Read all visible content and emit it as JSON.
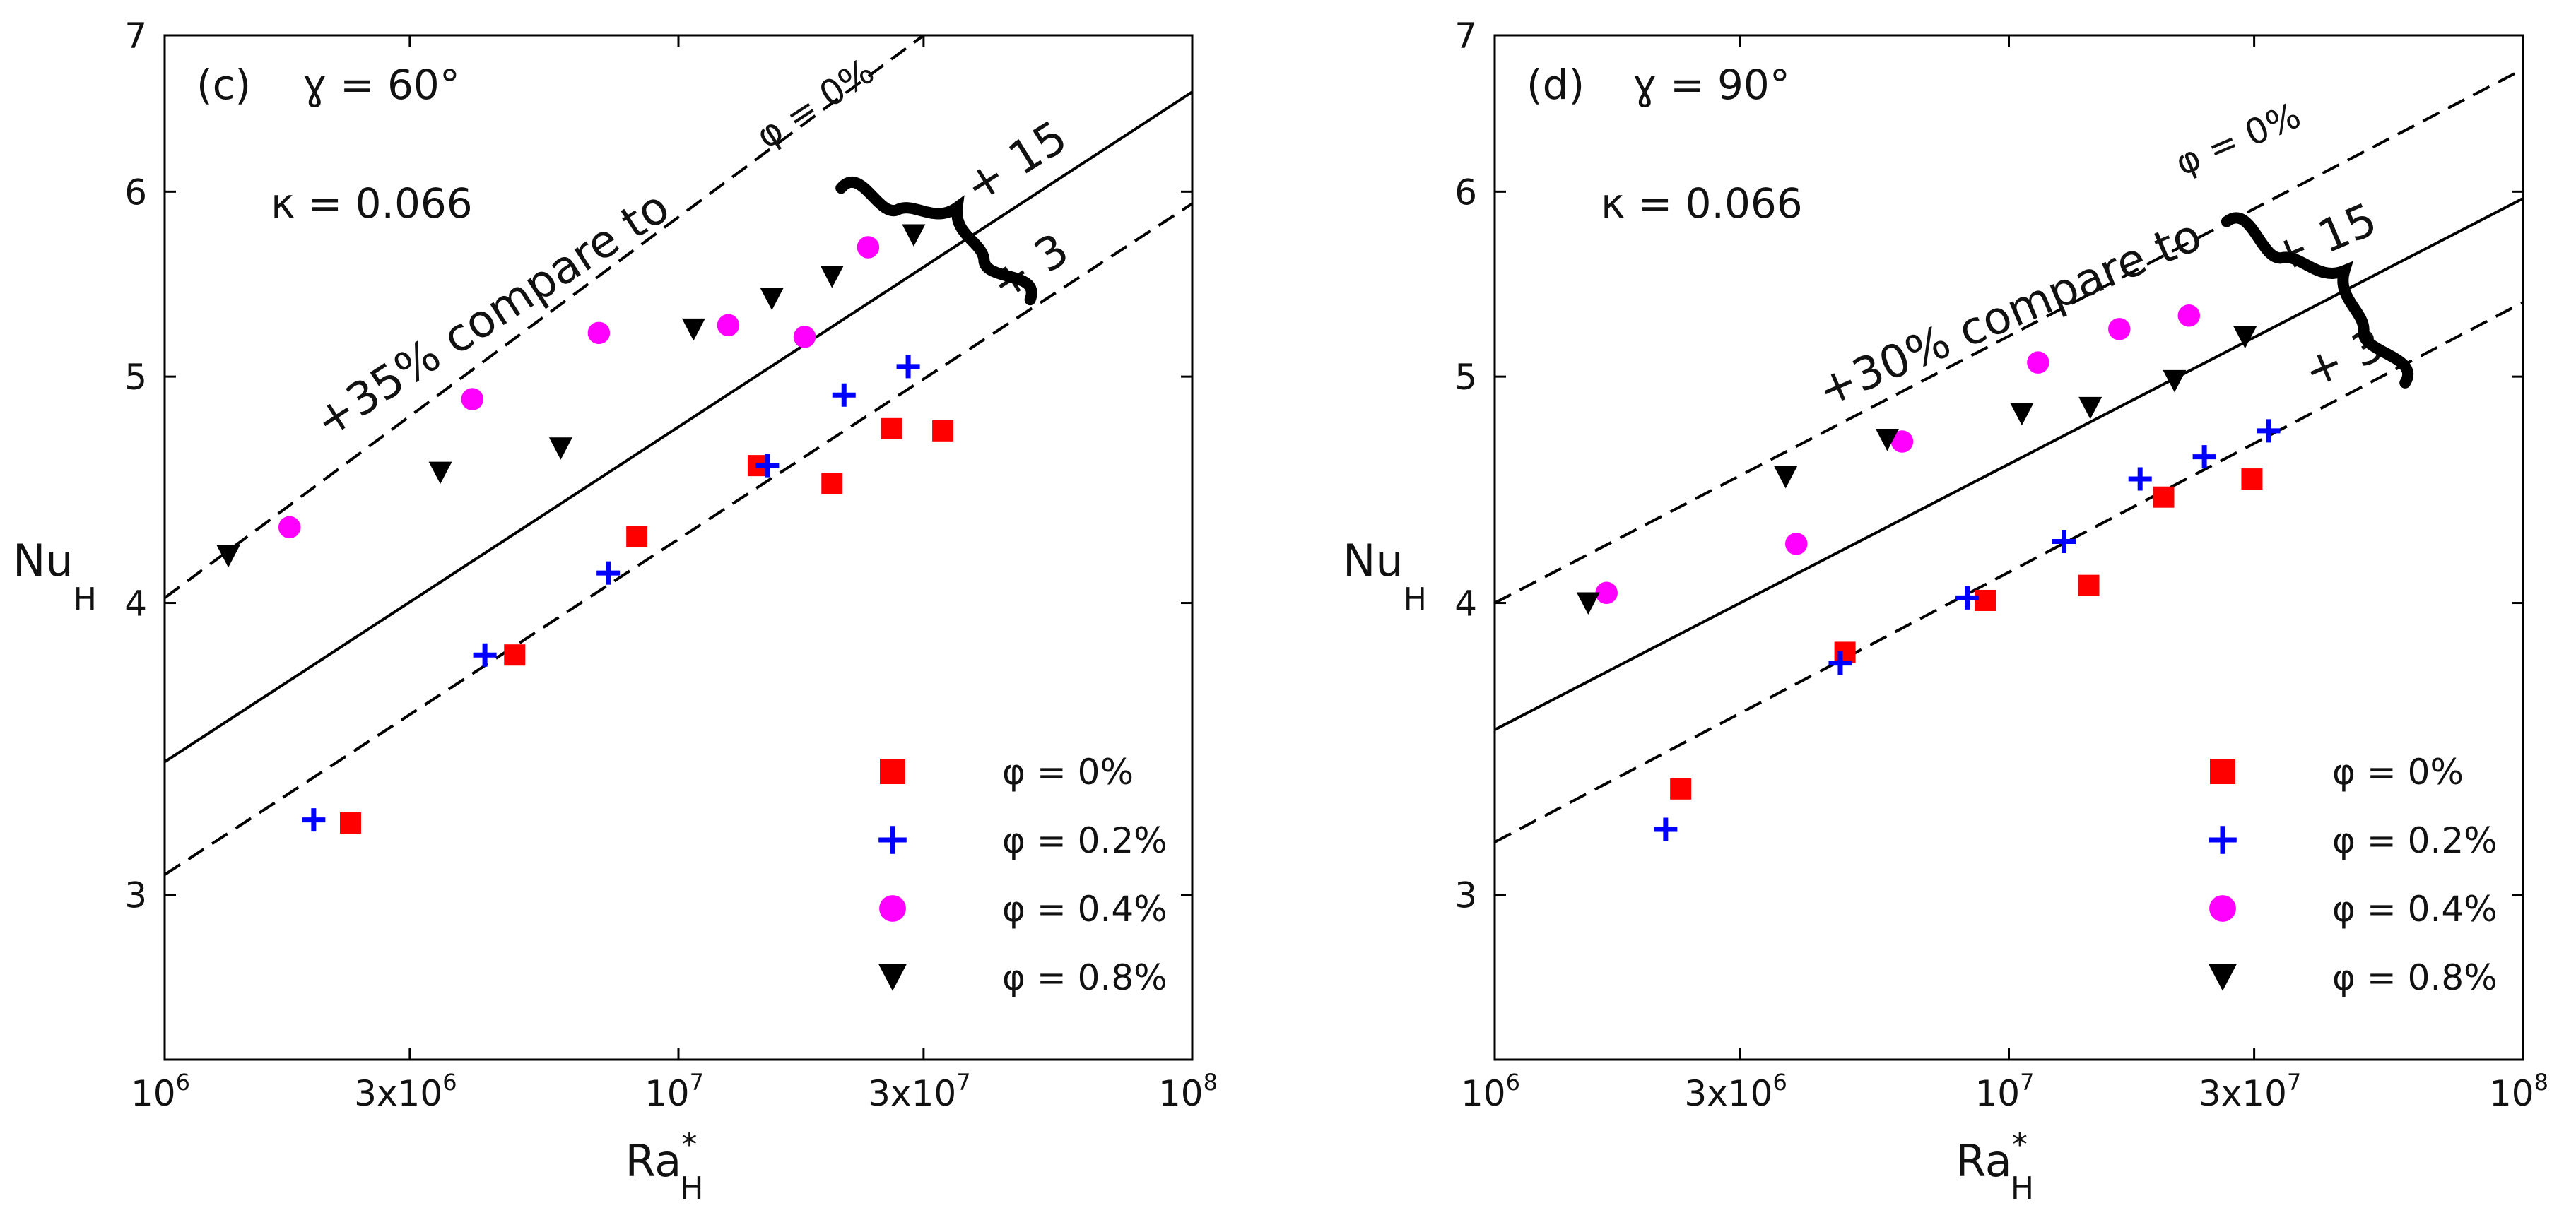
{
  "chart_data": [
    {
      "type": "scatter",
      "scale": {
        "x": "log",
        "y": "log"
      },
      "panel_label": "(c)",
      "angle_symbol": "ɣ",
      "angle_text": " = 60°",
      "kappa_text": "κ = 0.066",
      "xlim": [
        1000000,
        100000000
      ],
      "ylim": [
        2.55,
        7
      ],
      "xticks": [
        {
          "value": 1000000,
          "base": "10",
          "exp": "6"
        },
        {
          "value": 3000000,
          "base": "3x10",
          "exp": "6"
        },
        {
          "value": 10000000,
          "base": "10",
          "exp": "7"
        },
        {
          "value": 30000000,
          "base": "3x10",
          "exp": "7"
        },
        {
          "value": 100000000,
          "base": "10",
          "exp": "8"
        }
      ],
      "yticks": [
        {
          "value": 3,
          "label": "3"
        },
        {
          "value": 4,
          "label": "4"
        },
        {
          "value": 5,
          "label": "5"
        },
        {
          "value": 6,
          "label": "6"
        },
        {
          "value": 7,
          "label": "7"
        }
      ],
      "xlabel": {
        "main": "Ra",
        "sup": "*",
        "sub": "H"
      },
      "ylabel": {
        "main": "Nu",
        "sub": "H"
      },
      "fit_lines": [
        {
          "name": "solid",
          "style": "solid",
          "points": [
            [
              1000000,
              3.42
            ],
            [
              100000000,
              6.62
            ]
          ]
        },
        {
          "name": "upper",
          "style": "dashed",
          "points": [
            [
              1000000,
              4.02
            ],
            [
              30000000,
              7.0
            ]
          ]
        },
        {
          "name": "lower",
          "style": "dashed",
          "points": [
            [
              1000000,
              3.06
            ],
            [
              100000000,
              5.93
            ]
          ]
        }
      ],
      "annotation": {
        "text": "+35% compare to",
        "phi_text": "φ = 0%",
        "at": [
          4500000,
          5.25
        ],
        "phi_at": [
          19000000,
          6.48
        ],
        "angle": -33
      },
      "bands": [
        {
          "label": "+ 15",
          "at": [
            47000000,
            6.1
          ],
          "angle": -32
        },
        {
          "label": "+ 3",
          "at": [
            50000000,
            5.5
          ],
          "angle": -32
        }
      ],
      "brace": {
        "top": [
          21000000,
          6.05
        ],
        "bottom": [
          49000000,
          5.42
        ]
      },
      "series": [
        {
          "name": "φ = 0%",
          "marker": "square",
          "color": "#ff0000",
          "points": [
            [
              2300000,
              3.22
            ],
            [
              4800000,
              3.8
            ],
            [
              8300000,
              4.27
            ],
            [
              14300000,
              4.58
            ],
            [
              19900000,
              4.5
            ],
            [
              26000000,
              4.75
            ],
            [
              32700000,
              4.74
            ]
          ]
        },
        {
          "name": "φ = 0.2%",
          "marker": "plus",
          "color": "#0000ff",
          "points": [
            [
              1950000,
              3.23
            ],
            [
              4200000,
              3.8
            ],
            [
              7300000,
              4.12
            ],
            [
              14900000,
              4.58
            ],
            [
              21000000,
              4.91
            ],
            [
              28000000,
              5.05
            ]
          ]
        },
        {
          "name": "φ = 0.4%",
          "marker": "circle",
          "color": "#ff00ff",
          "points": [
            [
              1750000,
              4.31
            ],
            [
              3970000,
              4.89
            ],
            [
              7000000,
              5.22
            ],
            [
              12500000,
              5.26
            ],
            [
              17600000,
              5.2
            ],
            [
              23400000,
              5.68
            ]
          ]
        },
        {
          "name": "φ = 0.8%",
          "marker": "triangle-down",
          "color": "#000000",
          "points": [
            [
              1330000,
              4.19
            ],
            [
              3440000,
              4.55
            ],
            [
              5900000,
              4.66
            ],
            [
              10700000,
              5.24
            ],
            [
              15200000,
              5.4
            ],
            [
              19900000,
              5.52
            ],
            [
              28700000,
              5.75
            ]
          ]
        }
      ],
      "legend_position": "bottom-right"
    },
    {
      "type": "scatter",
      "scale": {
        "x": "log",
        "y": "log"
      },
      "panel_label": "(d)",
      "angle_symbol": "ɣ",
      "angle_text": " = 90°",
      "kappa_text": "κ = 0.066",
      "xlim": [
        1000000,
        100000000
      ],
      "ylim": [
        2.55,
        7
      ],
      "xticks": [
        {
          "value": 1000000,
          "base": "10",
          "exp": "6"
        },
        {
          "value": 3000000,
          "base": "3x10",
          "exp": "6"
        },
        {
          "value": 10000000,
          "base": "10",
          "exp": "7"
        },
        {
          "value": 30000000,
          "base": "3x10",
          "exp": "7"
        },
        {
          "value": 100000000,
          "base": "10",
          "exp": "8"
        }
      ],
      "yticks": [
        {
          "value": 3,
          "label": "3"
        },
        {
          "value": 4,
          "label": "4"
        },
        {
          "value": 5,
          "label": "5"
        },
        {
          "value": 6,
          "label": "6"
        },
        {
          "value": 7,
          "label": "7"
        }
      ],
      "xlabel": {
        "main": "Ra",
        "sup": "*",
        "sub": "H"
      },
      "ylabel": {
        "main": "Nu",
        "sub": "H"
      },
      "fit_lines": [
        {
          "name": "solid",
          "style": "solid",
          "points": [
            [
              1000000,
              3.53
            ],
            [
              100000000,
              5.96
            ]
          ]
        },
        {
          "name": "upper",
          "style": "dashed",
          "points": [
            [
              1000000,
              4.0
            ],
            [
              100000000,
              6.77
            ]
          ]
        },
        {
          "name": "lower",
          "style": "dashed",
          "points": [
            [
              1000000,
              3.16
            ],
            [
              100000000,
              5.38
            ]
          ]
        }
      ],
      "annotation": {
        "text": "+30% compare to",
        "phi_text": "φ = 0%",
        "at": [
          10300000,
          5.25
        ],
        "phi_at": [
          28500000,
          6.25
        ],
        "angle": -23
      },
      "bands": [
        {
          "label": "+ 15",
          "at": [
            42000000,
            5.65
          ],
          "angle": -23
        },
        {
          "label": "+ 3",
          "at": [
            46000000,
            5.02
          ],
          "angle": -23
        }
      ],
      "brace": {
        "top": [
          27000000,
          5.85
        ],
        "bottom": [
          60000000,
          4.99
        ]
      },
      "series": [
        {
          "name": "φ = 0%",
          "marker": "square",
          "color": "#ff0000",
          "points": [
            [
              2300000,
              3.33
            ],
            [
              4800000,
              3.81
            ],
            [
              9000000,
              4.01
            ],
            [
              14300000,
              4.07
            ],
            [
              20000000,
              4.44
            ],
            [
              29700000,
              4.52
            ]
          ]
        },
        {
          "name": "φ = 0.2%",
          "marker": "plus",
          "color": "#0000ff",
          "points": [
            [
              2150000,
              3.2
            ],
            [
              4700000,
              3.77
            ],
            [
              8300000,
              4.02
            ],
            [
              12800000,
              4.25
            ],
            [
              18000000,
              4.52
            ],
            [
              24000000,
              4.62
            ],
            [
              32000000,
              4.74
            ]
          ]
        },
        {
          "name": "φ = 0.4%",
          "marker": "circle",
          "color": "#ff00ff",
          "points": [
            [
              1650000,
              4.04
            ],
            [
              3860000,
              4.24
            ],
            [
              6200000,
              4.69
            ],
            [
              11400000,
              5.07
            ],
            [
              16400000,
              5.24
            ],
            [
              22400000,
              5.31
            ]
          ]
        },
        {
          "name": "φ = 0.8%",
          "marker": "triangle-down",
          "color": "#000000",
          "points": [
            [
              1520000,
              4.0
            ],
            [
              3680000,
              4.53
            ],
            [
              5800000,
              4.7
            ],
            [
              10600000,
              4.82
            ],
            [
              14400000,
              4.85
            ],
            [
              21000000,
              4.98
            ],
            [
              28800000,
              5.2
            ]
          ]
        }
      ],
      "legend_position": "bottom-right"
    }
  ]
}
